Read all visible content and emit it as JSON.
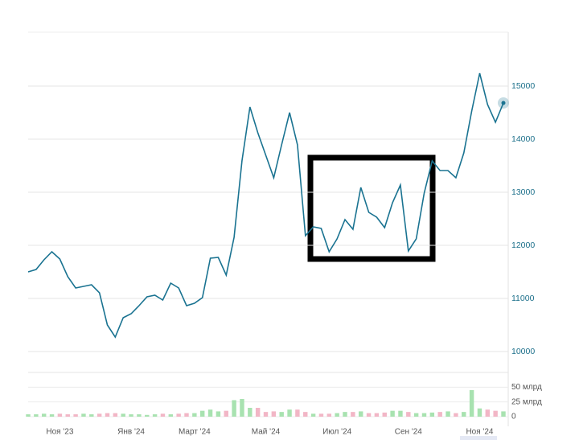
{
  "chart_data": [
    {
      "type": "line",
      "color": "#1a7391",
      "grid": true,
      "categories": [
        null,
        null,
        null,
        null,
        "Ноя '23",
        null,
        null,
        null,
        null,
        null,
        null,
        null,
        null,
        "Янв '24",
        null,
        null,
        null,
        null,
        null,
        null,
        null,
        "Март '24",
        null,
        null,
        null,
        null,
        null,
        null,
        null,
        null,
        "Май '24",
        null,
        null,
        null,
        null,
        null,
        null,
        null,
        null,
        "Июл '24",
        null,
        null,
        null,
        null,
        null,
        null,
        null,
        null,
        "Сен '24",
        null,
        null,
        null,
        null,
        null,
        null,
        null,
        null,
        "Ноя '24",
        null,
        null,
        null
      ],
      "values": [
        11500,
        11545,
        11727,
        11879,
        11742,
        11409,
        11197,
        11227,
        11258,
        11106,
        10500,
        10273,
        10636,
        10712,
        10864,
        11030,
        11061,
        10970,
        11288,
        11197,
        10864,
        10909,
        11015,
        11758,
        11773,
        11439,
        12152,
        13591,
        14606,
        14121,
        13697,
        13273,
        13894,
        14500,
        13894,
        12182,
        12348,
        12318,
        11879,
        12121,
        12485,
        12303,
        13091,
        12621,
        12530,
        12333,
        12803,
        13136,
        11894,
        12121,
        12985,
        13591,
        13409,
        13409,
        13273,
        13742,
        14530,
        15242,
        14652,
        14318,
        14682
      ],
      "ylim": [
        9750,
        16000
      ],
      "yticks": [
        10000,
        11000,
        12000,
        13000,
        14000,
        15000
      ]
    },
    {
      "type": "bar",
      "up_color": "#a8e2b0",
      "down_color": "#f2b6c6",
      "values": [
        4,
        4,
        5,
        4,
        5,
        4,
        4,
        5,
        4,
        5,
        6,
        6,
        5,
        4,
        4,
        3,
        4,
        5,
        4,
        5,
        6,
        6,
        10,
        12,
        9,
        10,
        28,
        30,
        15,
        15,
        8,
        9,
        8,
        12,
        12,
        8,
        5,
        5,
        5,
        6,
        8,
        8,
        9,
        6,
        6,
        7,
        10,
        10,
        8,
        6,
        6,
        7,
        8,
        9,
        6,
        8,
        45,
        14,
        12,
        10,
        9
      ],
      "ylim": [
        0,
        75
      ],
      "yticks": [
        0,
        {
          "value": 25,
          "label": "25 млрд"
        },
        {
          "value": 50,
          "label": "50 млрд"
        }
      ]
    }
  ]
}
